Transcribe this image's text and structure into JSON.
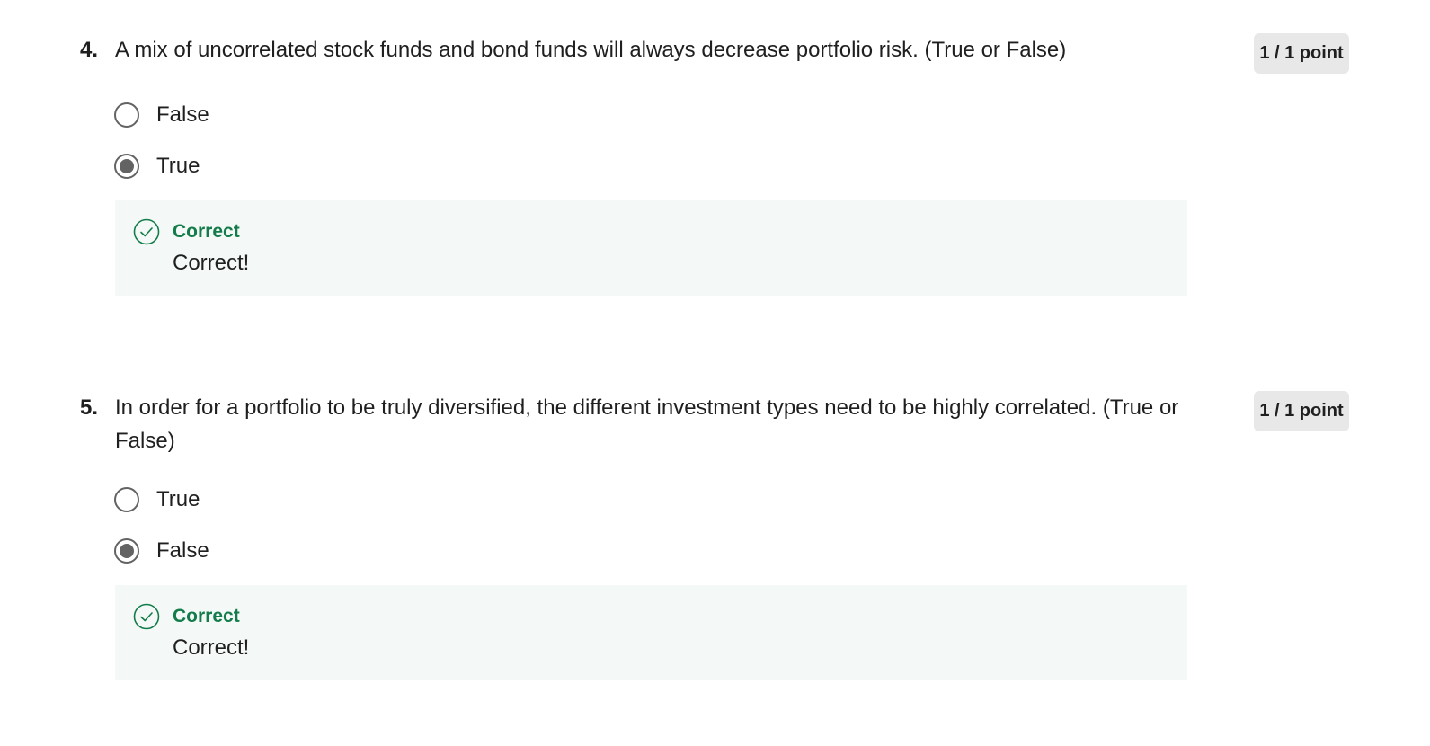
{
  "questions": [
    {
      "number": "4.",
      "text": "A mix of uncorrelated stock funds and bond funds will always decrease portfolio risk. (True or False)",
      "points": "1 / 1 point",
      "options": [
        {
          "label": "False",
          "selected": false
        },
        {
          "label": "True",
          "selected": true
        }
      ],
      "feedback": {
        "title": "Correct",
        "text": "Correct!"
      }
    },
    {
      "number": "5.",
      "text": "In order for a portfolio to be truly diversified, the different investment types need to be highly correlated.  (True or False)",
      "points": "1 / 1 point",
      "options": [
        {
          "label": "True",
          "selected": false
        },
        {
          "label": "False",
          "selected": true
        }
      ],
      "feedback": {
        "title": "Correct",
        "text": "Correct!"
      }
    }
  ],
  "colors": {
    "correct_green": "#137c4a",
    "feedback_bg": "#f4f9f7",
    "badge_bg": "#e8e8e8",
    "radio_gray": "#636363"
  },
  "icons": {
    "feedback": "check-circle-icon"
  }
}
